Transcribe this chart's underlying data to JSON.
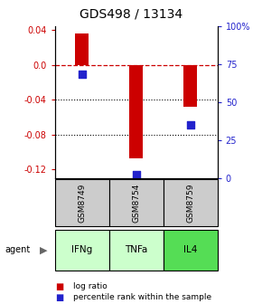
{
  "title": "GDS498 / 13134",
  "samples": [
    "GSM8749",
    "GSM8754",
    "GSM8759"
  ],
  "agents": [
    "IFNg",
    "TNFa",
    "IL4"
  ],
  "log_ratios": [
    0.036,
    -0.108,
    -0.048
  ],
  "percentile_ranks": [
    0.68,
    0.02,
    0.35
  ],
  "ylim": [
    -0.13,
    0.045
  ],
  "y_left_ticks": [
    0.04,
    0.0,
    -0.04,
    -0.08,
    -0.12
  ],
  "y_right_ticks": [
    100,
    75,
    50,
    25,
    0
  ],
  "bar_color": "#cc0000",
  "dot_color": "#2222cc",
  "zero_line_color": "#cc0000",
  "sample_bg": "#cccccc",
  "agent_bg_light": "#ccffcc",
  "agent_bg_dark": "#55dd55",
  "bar_width": 0.25,
  "dot_size": 28,
  "title_fontsize": 10,
  "tick_fontsize": 7,
  "legend_fontsize": 6.5
}
